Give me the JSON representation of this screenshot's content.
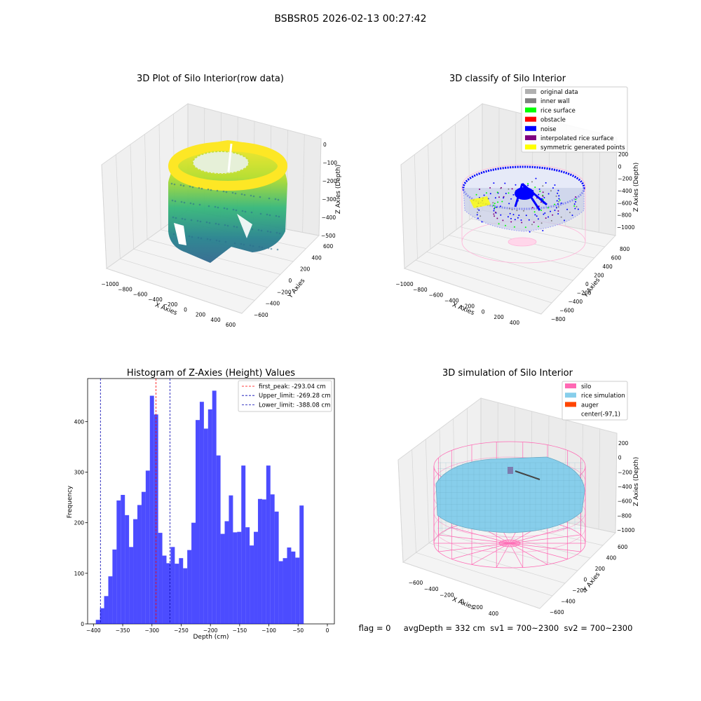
{
  "figure": {
    "suptitle": "BSBSR05 2026-02-13 00:27:42",
    "footer": "flag = 0     avgDepth = 332 cm  sv1 = 700~2300  sv2 = 700~2300"
  },
  "plot_raw": {
    "title": "3D Plot of Silo Interior(row data)",
    "xlabel": "X Axies",
    "ylabel": "Y Axies",
    "zlabel": "Z Axies (Depth)",
    "xticks": [
      "−1000",
      "−800",
      "−600",
      "−400",
      "−200",
      "0",
      "200",
      "400",
      "600"
    ],
    "yticks": [
      "−600",
      "−400",
      "−200",
      "0",
      "200",
      "400",
      "600"
    ],
    "zticks": [
      "0",
      "−100",
      "−200",
      "−300",
      "−400",
      "−500"
    ],
    "colormap": [
      "#fde725",
      "#7ad151",
      "#22a884",
      "#2a788e",
      "#414487"
    ]
  },
  "plot_classify": {
    "title": "3D classify of Silo Interior",
    "xlabel": "X Axies",
    "ylabel": "Y Axies",
    "zlabel": "Z Axies (Depth)",
    "xticks": [
      "−1000",
      "−800",
      "−600",
      "−400",
      "−200",
      "0",
      "200",
      "400"
    ],
    "yticks": [
      "−800",
      "−600",
      "−400",
      "−200",
      "0",
      "200",
      "400",
      "600",
      "800"
    ],
    "zticks": [
      "200",
      "0",
      "−200",
      "−400",
      "−600",
      "−800",
      "−1000"
    ],
    "legend": [
      {
        "label": "original data",
        "color": "#b0b0b0"
      },
      {
        "label": "inner wall",
        "color": "#808080"
      },
      {
        "label": "rice surface",
        "color": "#00ff00"
      },
      {
        "label": "obstacle",
        "color": "#ff0000"
      },
      {
        "label": "noise",
        "color": "#0000ff"
      },
      {
        "label": "interpolated rice surface",
        "color": "#800080"
      },
      {
        "label": "symmetric generated points",
        "color": "#ffff00"
      }
    ]
  },
  "plot_sim": {
    "title": "3D simulation of Silo Interior",
    "xlabel": "X Axies",
    "ylabel": "Y Axies",
    "zlabel": "Z Axies (Depth)",
    "xticks": [
      "−600",
      "−400",
      "−200",
      "0",
      "200",
      "400"
    ],
    "yticks": [
      "−600",
      "−400",
      "−200",
      "0",
      "200",
      "400",
      "600"
    ],
    "zticks": [
      "200",
      "0",
      "−200",
      "−400",
      "−600",
      "−800",
      "−1000"
    ],
    "legend": [
      {
        "label": "silo",
        "color": "#ff69b4"
      },
      {
        "label": "rice simulation",
        "color": "#87ceeb"
      },
      {
        "label": "auger",
        "color": "#ff4500"
      },
      {
        "label": "center(-97,1)",
        "color": "#ffffff"
      }
    ]
  },
  "chart_data": [
    {
      "type": "bar",
      "title": "Histogram of Z-Axies (Height) Values",
      "xlabel": "Depth (cm)",
      "ylabel": "Frequency",
      "xlim": [
        -410,
        12
      ],
      "ylim": [
        0,
        485
      ],
      "xticks": [
        -400,
        -350,
        -300,
        -250,
        -200,
        -150,
        -100,
        -50,
        0
      ],
      "xtick_labels": [
        "−400",
        "−350",
        "−300",
        "−250",
        "−200",
        "−150",
        "−100",
        "−50",
        "0"
      ],
      "yticks": [
        0,
        100,
        200,
        300,
        400
      ],
      "bar_color": "#0000ff",
      "bins": {
        "start": -396.0,
        "width": 7.11,
        "counts": [
          8,
          31,
          55,
          94,
          147,
          244,
          255,
          215,
          152,
          207,
          235,
          261,
          303,
          451,
          414,
          180,
          135,
          120,
          152,
          119,
          130,
          110,
          146,
          200,
          403,
          439,
          386,
          424,
          461,
          333,
          178,
          203,
          254,
          181,
          182,
          313,
          191,
          155,
          182,
          247,
          246,
          313,
          256,
          222,
          124,
          130,
          151,
          143,
          131,
          234
        ]
      },
      "lines": [
        {
          "label": "first_peak: -293.04 cm",
          "x": -293.04,
          "color": "#ff0000"
        },
        {
          "label": "Upper_limit: -269.28 cm",
          "x": -269.28,
          "color": "#0000b0"
        },
        {
          "label": "Lower_limit: -388.08 cm",
          "x": -388.08,
          "color": "#0000b0"
        }
      ]
    }
  ]
}
